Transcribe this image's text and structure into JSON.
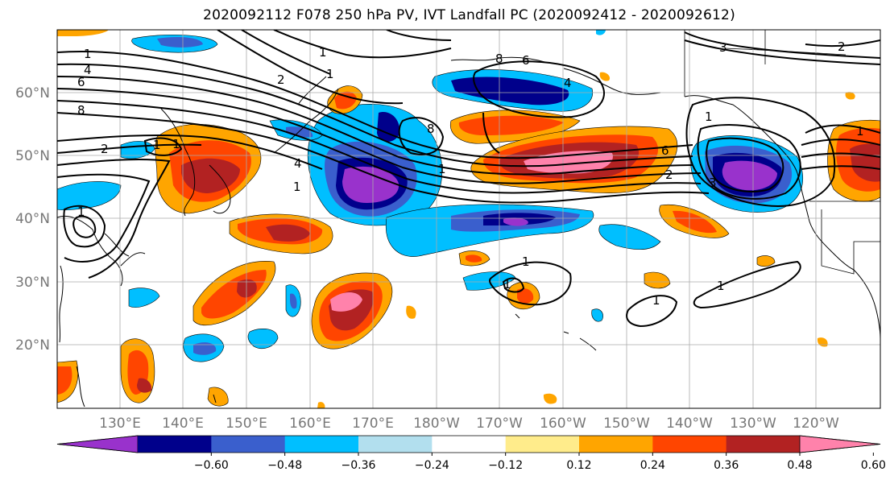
{
  "title": "2020092112 F078 250 hPa PV, IVT Landfall PC (2020092412 - 2020092612)",
  "lat_labels": [
    "60°N",
    "50°N",
    "40°N",
    "30°N",
    "20°N"
  ],
  "lon_labels": [
    "130°E",
    "140°E",
    "150°E",
    "160°E",
    "170°E",
    "180°W",
    "170°W",
    "160°W",
    "150°W",
    "140°W",
    "130°W",
    "120°W"
  ],
  "colorbar": {
    "colors": [
      "#9932cc",
      "#00008b",
      "#3a5fcd",
      "#00bfff",
      "#b2dfee",
      "#ffffff",
      "#ffec8b",
      "#ffa500",
      "#ff4500",
      "#b22222",
      "#ff82ab"
    ],
    "ticks": [
      "−0.60",
      "−0.48",
      "−0.36",
      "−0.24",
      "−0.12",
      "0.12",
      "0.24",
      "0.36",
      "0.48",
      "0.60"
    ],
    "extend": "both"
  },
  "contour_labels": [
    "1",
    "4",
    "6",
    "8",
    "2",
    "1",
    "1",
    "2",
    "1",
    "8",
    "6",
    "4",
    "1",
    "4",
    "1",
    "8",
    "1",
    "6",
    "2",
    "1",
    "3",
    "1",
    "1",
    "3",
    "2",
    "1",
    "1",
    "1",
    "1"
  ]
}
